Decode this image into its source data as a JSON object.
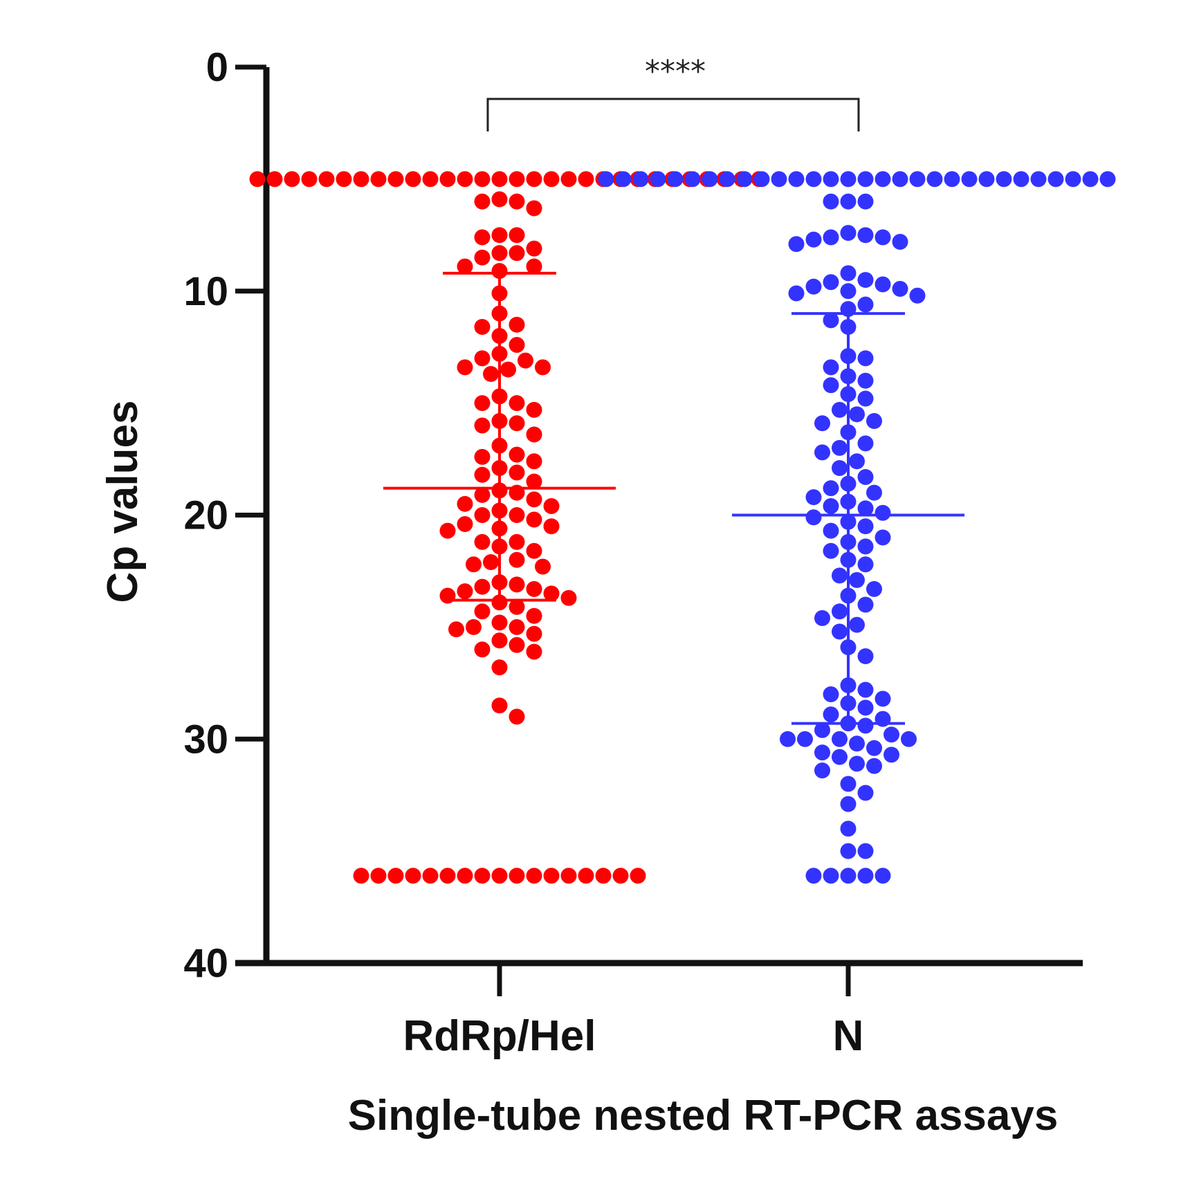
{
  "chart_data": {
    "type": "scatter",
    "subtype": "dot-plot-with-mean-and-sd",
    "ylabel": "Cp values",
    "xlabel": "Single-tube nested RT-PCR assays",
    "categories": [
      "RdRp/Hel",
      "N"
    ],
    "ylim": [
      0,
      40
    ],
    "y_inverted": true,
    "yticks": [
      "0",
      "10",
      "20",
      "30",
      "40"
    ],
    "significance": {
      "label": "****",
      "between": [
        "RdRp/Hel",
        "N"
      ]
    },
    "grid": false,
    "series": [
      {
        "category": "RdRp/Hel",
        "color": "#ff0000",
        "mean": 18.8,
        "sd_low": 9.2,
        "sd_high": 23.8,
        "values": [
          5,
          5,
          5,
          5,
          5,
          5,
          5,
          5,
          5,
          5,
          5,
          5,
          5,
          5,
          5,
          5,
          5,
          5,
          5,
          5,
          5,
          5,
          5,
          5,
          5,
          5,
          5,
          5,
          5,
          5,
          5.9,
          6,
          6.3,
          6,
          7.5,
          7.6,
          7.5,
          8.1,
          8.3,
          8.5,
          8.3,
          8.9,
          8.9,
          9.1,
          10.1,
          11,
          11.6,
          11.5,
          12,
          12.4,
          12.8,
          13.1,
          13,
          13.4,
          13.5,
          13.7,
          13.4,
          14.7,
          15,
          15.3,
          15,
          15.9,
          15.8,
          16,
          16.4,
          16.9,
          17.3,
          17.4,
          17.6,
          17.9,
          18.1,
          18.2,
          18.5,
          18.9,
          19,
          19.3,
          19.1,
          19.5,
          19.6,
          19.8,
          20,
          20.2,
          20,
          20.4,
          20.6,
          20.7,
          20.5,
          21.2,
          21.4,
          21.6,
          21.2,
          22,
          22.2,
          22.1,
          22.3,
          23,
          23.1,
          23.2,
          23.4,
          23.6,
          23.3,
          23.5,
          23.7,
          23.9,
          24.1,
          24.3,
          24.5,
          24.8,
          25,
          25.1,
          25,
          25.3,
          25.6,
          25.8,
          26,
          26.1,
          26.8,
          28.5,
          29,
          36.1,
          36.1,
          36.1,
          36.1,
          36.1,
          36.1,
          36.1,
          36.1,
          36.1,
          36.1,
          36.1,
          36.1,
          36.1,
          36.1,
          36.1,
          36.1,
          36.1
        ]
      },
      {
        "category": "N",
        "color": "#3333ff",
        "mean": 20,
        "sd_low": 11,
        "sd_high": 29.3,
        "values": [
          5,
          5,
          5,
          5,
          5,
          5,
          5,
          5,
          5,
          5,
          5,
          5,
          5,
          5,
          5,
          5,
          5,
          5,
          5,
          5,
          5,
          5,
          5,
          5,
          5,
          5,
          5,
          5,
          5,
          5,
          6,
          6,
          6,
          7.4,
          7.6,
          7.7,
          7.8,
          7.9,
          7.6,
          7.5,
          9.2,
          9.5,
          9.6,
          9.8,
          9.9,
          10,
          10.2,
          10.1,
          9.7,
          10.6,
          10.8,
          11.3,
          11.6,
          12.9,
          13,
          13.4,
          13.8,
          14,
          14.2,
          14.6,
          14.8,
          15.3,
          15.5,
          15.8,
          15.9,
          16.3,
          16.8,
          17,
          17.2,
          17.6,
          17.9,
          18.3,
          18.6,
          18.8,
          19,
          19.2,
          19.4,
          19.6,
          19.7,
          19.9,
          20.1,
          20.3,
          20.5,
          20.7,
          21,
          21.2,
          21.4,
          21.6,
          22,
          22.2,
          22.7,
          22.9,
          23.3,
          23.6,
          24,
          24.3,
          24.6,
          24.9,
          25.2,
          25.9,
          26.3,
          27.6,
          27.8,
          28,
          28.2,
          28.4,
          28.6,
          28.9,
          29.1,
          29.3,
          29.4,
          29.6,
          29.8,
          30,
          30,
          30,
          30,
          30.2,
          30.4,
          30.6,
          30.7,
          30.8,
          31.1,
          31.2,
          31.4,
          32,
          32.4,
          32.9,
          34,
          35,
          35,
          36.1,
          36.1,
          36.1,
          36.1,
          36.1
        ]
      }
    ]
  }
}
